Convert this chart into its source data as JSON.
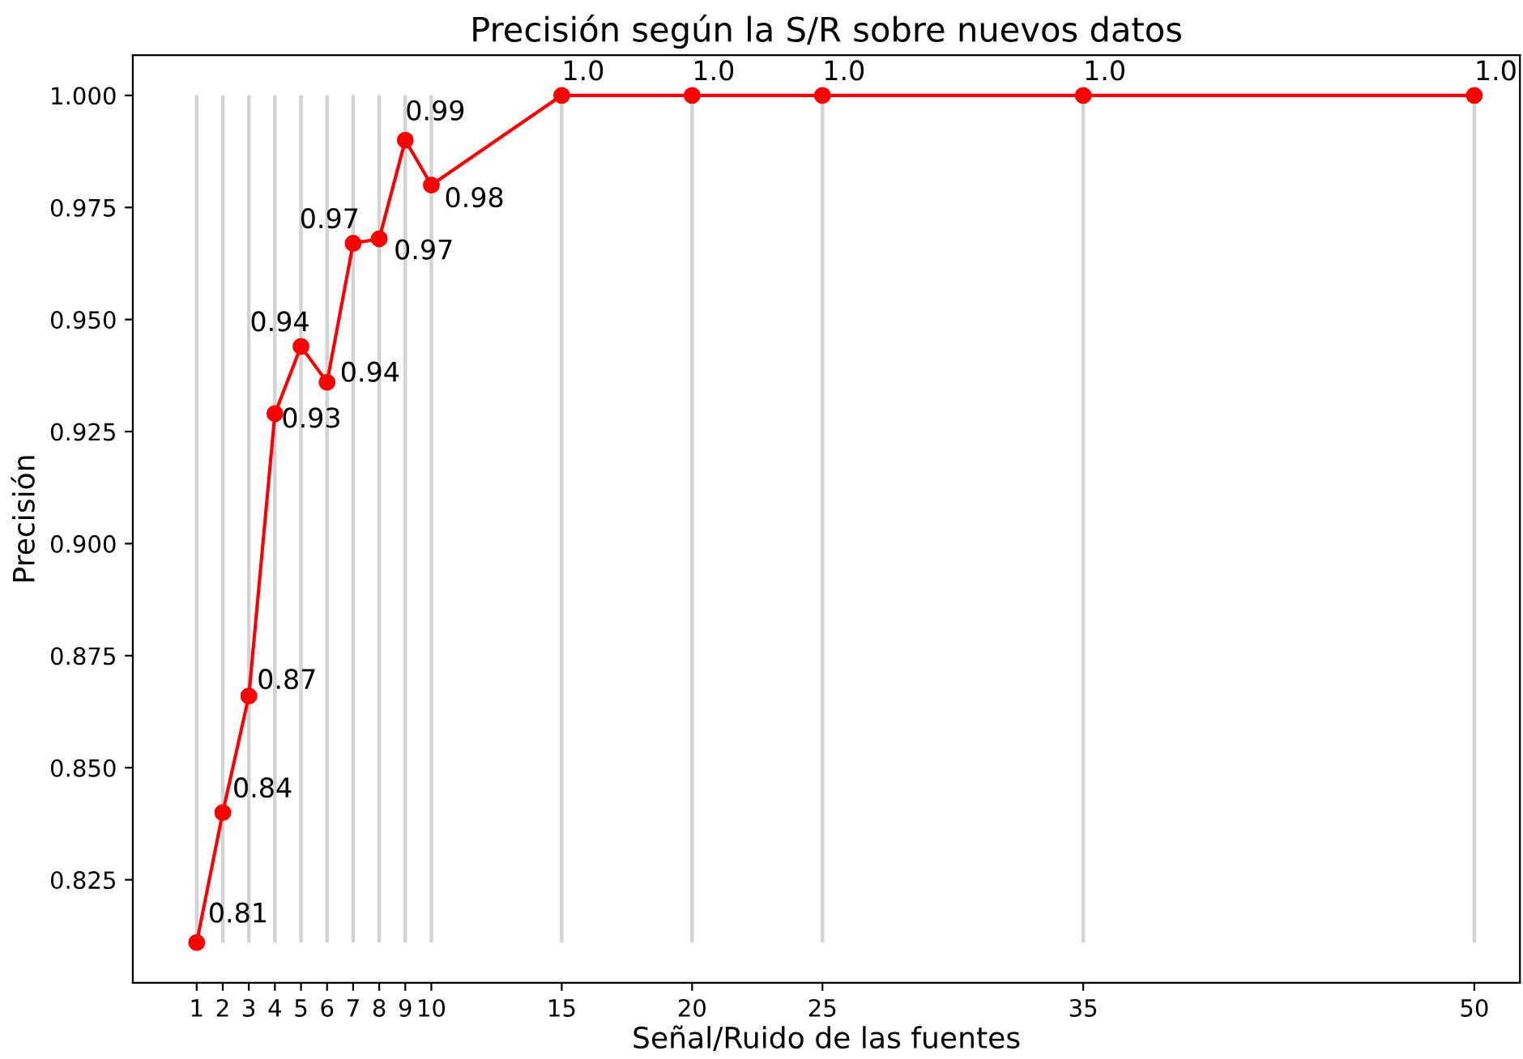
{
  "chart_data": {
    "type": "line",
    "title": "Precisión según la S/R sobre nuevos datos",
    "xlabel": "Señal/Ruido de las fuentes",
    "ylabel": "Precisión",
    "x": [
      1,
      2,
      3,
      4,
      5,
      6,
      7,
      8,
      9,
      10,
      15,
      20,
      25,
      35,
      50
    ],
    "values": [
      0.811,
      0.84,
      0.866,
      0.929,
      0.944,
      0.936,
      0.967,
      0.968,
      0.99,
      0.98,
      1.0,
      1.0,
      1.0,
      1.0,
      1.0
    ],
    "value_labels": [
      "0.81",
      "0.84",
      "0.87",
      "0.93",
      "0.94",
      "0.94",
      "0.97",
      "0.97",
      "0.99",
      "0.98",
      "1.0",
      "1.0",
      "1.0",
      "1.0",
      "1.0"
    ],
    "color": "#ff0000",
    "marker": "circle",
    "line_style": "solid",
    "grid": "x",
    "xlim": [
      -1.45,
      51.75
    ],
    "ylim": [
      0.802,
      1.009
    ],
    "xticks": [
      1,
      2,
      3,
      4,
      5,
      6,
      7,
      8,
      9,
      10,
      15,
      20,
      25,
      35,
      50
    ],
    "yticks": [
      0.825,
      {
        "value": 0.85,
        "label": "0.850"
      },
      0.875,
      {
        "value": 0.9,
        "label": "0.900"
      },
      0.925,
      {
        "value": 0.95,
        "label": "0.950"
      },
      0.975,
      {
        "value": 1.0,
        "label": "1.000"
      }
    ]
  }
}
